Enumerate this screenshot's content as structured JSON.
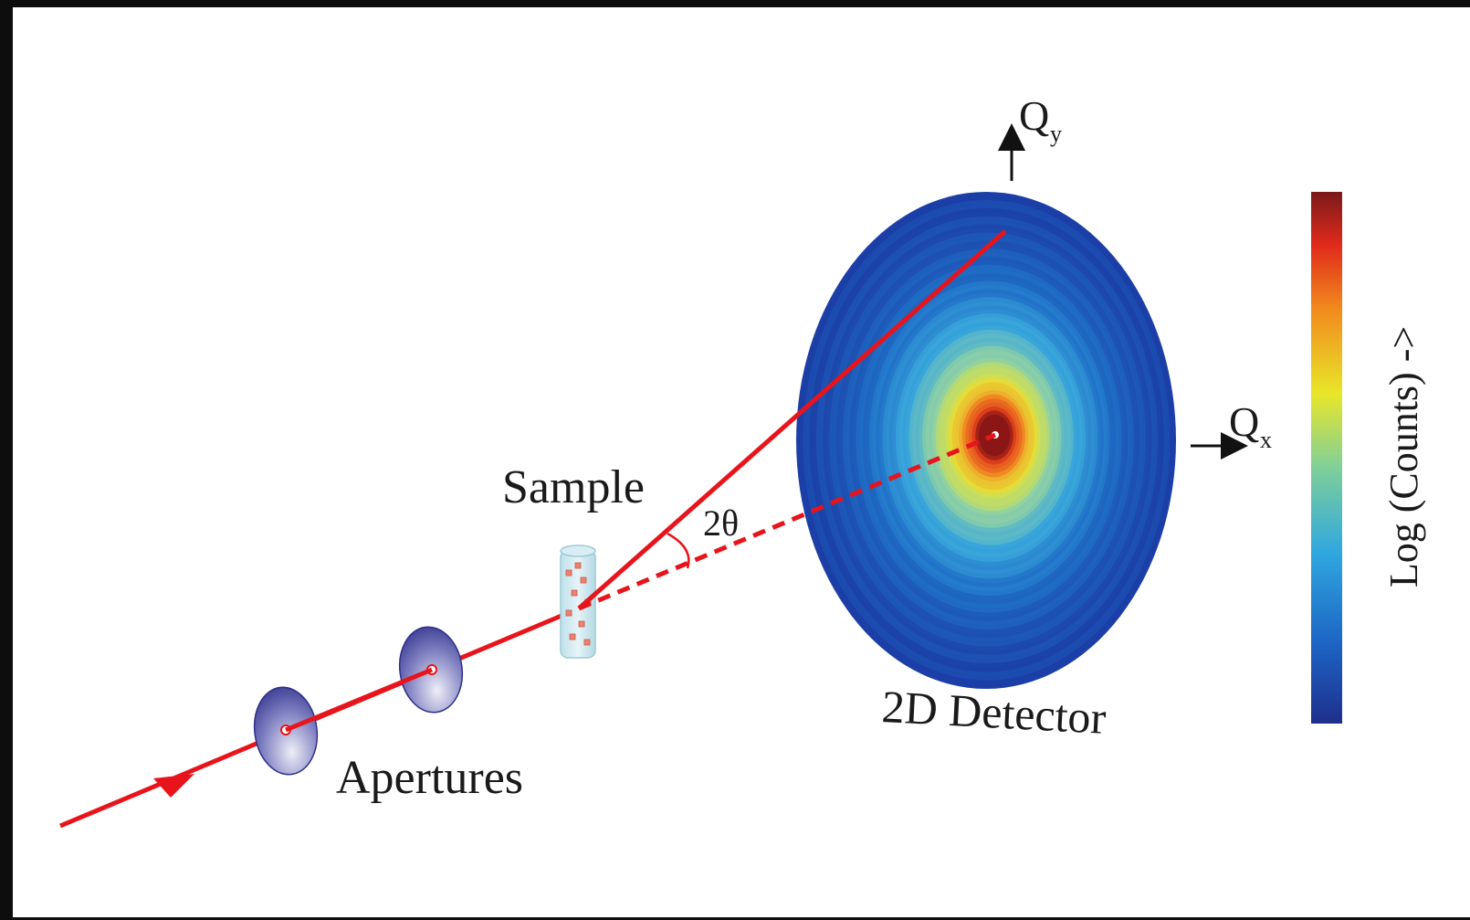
{
  "labels": {
    "apertures": "Apertures",
    "sample": "Sample",
    "detector": "2D Detector",
    "angle": "2θ",
    "qy_main": "Q",
    "qy_sub": "y",
    "qx_main": "Q",
    "qx_sub": "x",
    "colorbar": "Log (Counts) ->"
  },
  "colors": {
    "beam": "#e8141c",
    "aperture": "#2e2f8a",
    "frame": "#0d0d0d",
    "colorbar_stops": [
      "#1e2f8c",
      "#1d64c4",
      "#2fa7df",
      "#7fcf9a",
      "#e8e62a",
      "#f28a1d",
      "#e02a1c",
      "#7a1a1a"
    ]
  }
}
